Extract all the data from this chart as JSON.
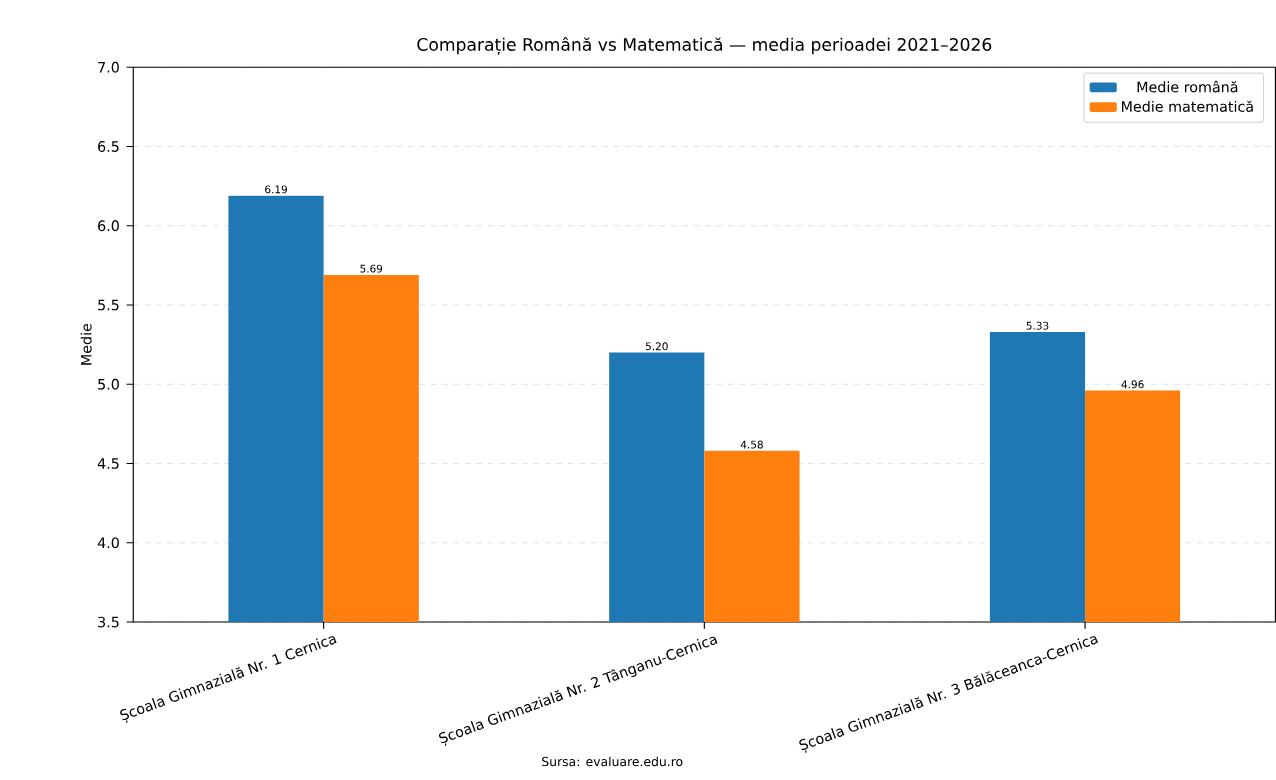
{
  "chart_data": {
    "type": "bar",
    "title": "Comparație Română vs Matematică — media perioadei 2021–2026",
    "ylabel": "Medie",
    "categories": [
      "Școala Gimnazială Nr. 1 Cernica",
      "Școala Gimnazială Nr. 2 Tânganu-Cernica",
      "Școala Gimnazială Nr. 3 Bălăceanca-Cernica"
    ],
    "series": [
      {
        "name": "Medie română",
        "color": "#1f77b4",
        "values": [
          6.19,
          5.2,
          5.33
        ],
        "value_labels": [
          "6.19",
          "5.20",
          "5.33"
        ]
      },
      {
        "name": "Medie matematică",
        "color": "#ff7f0e",
        "values": [
          5.69,
          4.58,
          4.96
        ],
        "value_labels": [
          "5.69",
          "4.58",
          "4.96"
        ]
      }
    ],
    "ylim": [
      3.5,
      7.0
    ],
    "yticks": [
      3.5,
      {
        "value": 4,
        "label": "4.0"
      },
      4.5,
      {
        "value": 5,
        "label": "5.0"
      },
      5.5,
      {
        "value": 6,
        "label": "6.0"
      },
      6.5,
      {
        "value": 7,
        "label": "7.0"
      }
    ],
    "grid": "y",
    "legend": "top right",
    "annotations": [
      "Sursa: evaluare.edu.ro"
    ]
  }
}
